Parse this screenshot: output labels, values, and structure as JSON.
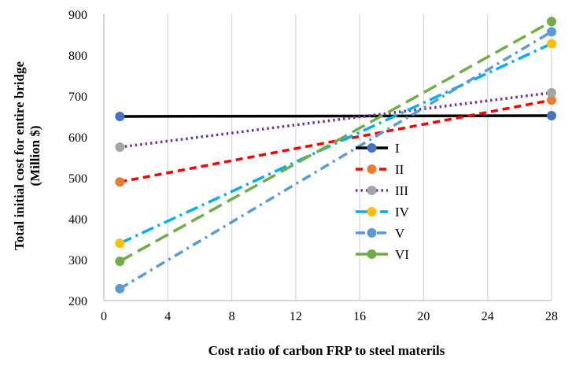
{
  "chart_data": {
    "type": "line",
    "xlabel": "Cost ratio of carbon FRP to steel materils",
    "ylabel_line1": "Total initial  cost for entire bridge",
    "ylabel_line2": "(Million  $)",
    "xlim": [
      0,
      28
    ],
    "ylim": [
      200,
      900
    ],
    "x_ticks": [
      0,
      4,
      8,
      12,
      16,
      20,
      24,
      28
    ],
    "y_ticks": [
      200,
      300,
      400,
      500,
      600,
      700,
      800,
      900
    ],
    "grid": "vertical",
    "legend_placement": "center-right",
    "series": [
      {
        "name": "I",
        "color": "#000000",
        "marker_color": "#4472C4",
        "dash": "solid",
        "x": [
          1,
          28
        ],
        "y": [
          650,
          652
        ]
      },
      {
        "name": "II",
        "color": "#FF0000",
        "marker_color": "#ED7D31",
        "dash": "dash",
        "x": [
          1,
          28
        ],
        "y": [
          490,
          690
        ]
      },
      {
        "name": "III",
        "color": "#7030A0",
        "marker_color": "#A5A5A5",
        "dash": "dot",
        "x": [
          1,
          28
        ],
        "y": [
          575,
          708
        ]
      },
      {
        "name": "IV",
        "color": "#00B0F0",
        "marker_color": "#FFC000",
        "dash": "longdashdot",
        "x": [
          1,
          28
        ],
        "y": [
          340,
          828
        ]
      },
      {
        "name": "V",
        "color": "#5B9BD5",
        "marker_color": "#5B9BD5",
        "dash": "dashdot",
        "x": [
          1,
          28
        ],
        "y": [
          229,
          857
        ]
      },
      {
        "name": "VI",
        "color": "#70AD47",
        "marker_color": "#70AD47",
        "dash": "longdash",
        "x": [
          1,
          28
        ],
        "y": [
          296,
          882
        ]
      }
    ]
  }
}
